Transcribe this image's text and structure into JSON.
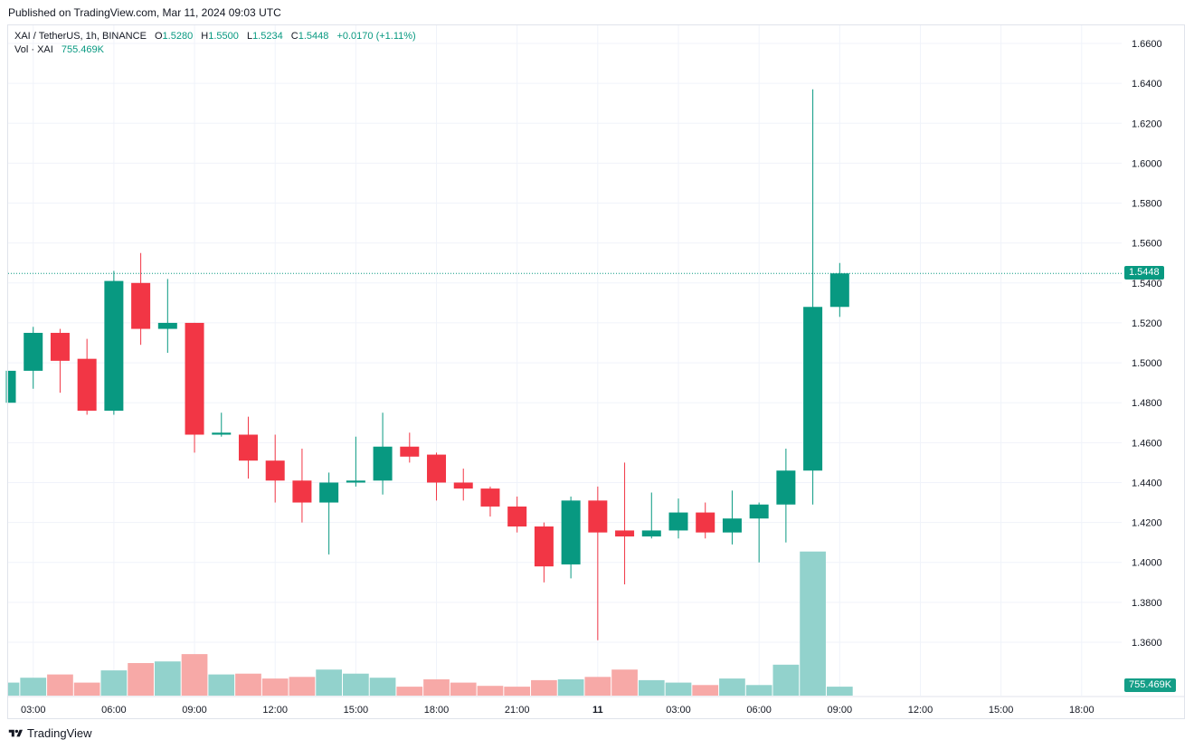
{
  "published": "Published on TradingView.com, Mar 11, 2024 09:03 UTC",
  "legend": {
    "symbol": "XAI / TetherUS, 1h, BINANCE",
    "open_label": "O",
    "open": "1.5280",
    "high_label": "H",
    "high": "1.5500",
    "low_label": "L",
    "low": "1.5234",
    "close_label": "C",
    "close": "1.5448",
    "change": "+0.0170 (+1.11%)",
    "vol_label": "Vol · XAI",
    "vol_value": "755.469K"
  },
  "price_badge": "1.5448",
  "volume_badge": "755.469K",
  "footer": {
    "brand": "TradingView"
  },
  "colors": {
    "up": "#089981",
    "down": "#f23645",
    "up_vol": "#92d2cc",
    "down_vol": "#f7a9a7",
    "grid": "#f0f3fa",
    "text": "#131722"
  },
  "chart_data": {
    "type": "candlestick",
    "symbol": "XAI / TetherUS",
    "interval": "1h",
    "exchange": "BINANCE",
    "ylim": [
      1.35,
      1.67
    ],
    "y_ticks": [
      "1.3600",
      "1.3800",
      "1.4000",
      "1.4200",
      "1.4400",
      "1.4600",
      "1.4800",
      "1.5000",
      "1.5200",
      "1.5400",
      "1.5600",
      "1.5800",
      "1.6000",
      "1.6200",
      "1.6400",
      "1.6600"
    ],
    "x_ticks": [
      {
        "label": "03:00",
        "index": 1
      },
      {
        "label": "06:00",
        "index": 4
      },
      {
        "label": "09:00",
        "index": 7
      },
      {
        "label": "12:00",
        "index": 10
      },
      {
        "label": "15:00",
        "index": 13
      },
      {
        "label": "18:00",
        "index": 16
      },
      {
        "label": "21:00",
        "index": 19
      },
      {
        "label": "11",
        "index": 22,
        "bold": true
      },
      {
        "label": "03:00",
        "index": 25
      },
      {
        "label": "06:00",
        "index": 28
      },
      {
        "label": "09:00",
        "index": 31
      },
      {
        "label": "12:00",
        "index": 34
      },
      {
        "label": "15:00",
        "index": 37
      },
      {
        "label": "18:00",
        "index": 40
      }
    ],
    "last_price": 1.5448,
    "candles": [
      {
        "o": 1.48,
        "h": 1.496,
        "l": 1.48,
        "c": 1.496,
        "v": 16
      },
      {
        "o": 1.496,
        "h": 1.518,
        "l": 1.487,
        "c": 1.515,
        "v": 22
      },
      {
        "o": 1.515,
        "h": 1.517,
        "l": 1.485,
        "c": 1.501,
        "v": 26
      },
      {
        "o": 1.502,
        "h": 1.512,
        "l": 1.474,
        "c": 1.476,
        "v": 16
      },
      {
        "o": 1.476,
        "h": 1.546,
        "l": 1.474,
        "c": 1.541,
        "v": 31
      },
      {
        "o": 1.54,
        "h": 1.555,
        "l": 1.509,
        "c": 1.517,
        "v": 40
      },
      {
        "o": 1.517,
        "h": 1.542,
        "l": 1.505,
        "c": 1.52,
        "v": 42
      },
      {
        "o": 1.52,
        "h": 1.52,
        "l": 1.455,
        "c": 1.464,
        "v": 51
      },
      {
        "o": 1.464,
        "h": 1.475,
        "l": 1.463,
        "c": 1.465,
        "v": 26
      },
      {
        "o": 1.464,
        "h": 1.473,
        "l": 1.442,
        "c": 1.451,
        "v": 27
      },
      {
        "o": 1.451,
        "h": 1.464,
        "l": 1.43,
        "c": 1.441,
        "v": 21
      },
      {
        "o": 1.441,
        "h": 1.457,
        "l": 1.42,
        "c": 1.43,
        "v": 23
      },
      {
        "o": 1.43,
        "h": 1.445,
        "l": 1.404,
        "c": 1.44,
        "v": 32
      },
      {
        "o": 1.44,
        "h": 1.463,
        "l": 1.438,
        "c": 1.441,
        "v": 27
      },
      {
        "o": 1.441,
        "h": 1.475,
        "l": 1.434,
        "c": 1.458,
        "v": 22
      },
      {
        "o": 1.458,
        "h": 1.465,
        "l": 1.45,
        "c": 1.453,
        "v": 11
      },
      {
        "o": 1.454,
        "h": 1.455,
        "l": 1.431,
        "c": 1.44,
        "v": 20
      },
      {
        "o": 1.44,
        "h": 1.447,
        "l": 1.431,
        "c": 1.437,
        "v": 16
      },
      {
        "o": 1.437,
        "h": 1.438,
        "l": 1.423,
        "c": 1.428,
        "v": 12
      },
      {
        "o": 1.428,
        "h": 1.433,
        "l": 1.415,
        "c": 1.418,
        "v": 11
      },
      {
        "o": 1.418,
        "h": 1.42,
        "l": 1.39,
        "c": 1.398,
        "v": 19
      },
      {
        "o": 1.399,
        "h": 1.433,
        "l": 1.392,
        "c": 1.431,
        "v": 20
      },
      {
        "o": 1.431,
        "h": 1.438,
        "l": 1.361,
        "c": 1.415,
        "v": 23
      },
      {
        "o": 1.416,
        "h": 1.45,
        "l": 1.389,
        "c": 1.413,
        "v": 32
      },
      {
        "o": 1.413,
        "h": 1.435,
        "l": 1.412,
        "c": 1.416,
        "v": 19
      },
      {
        "o": 1.416,
        "h": 1.432,
        "l": 1.412,
        "c": 1.425,
        "v": 16
      },
      {
        "o": 1.425,
        "h": 1.43,
        "l": 1.412,
        "c": 1.415,
        "v": 13
      },
      {
        "o": 1.415,
        "h": 1.436,
        "l": 1.409,
        "c": 1.422,
        "v": 21
      },
      {
        "o": 1.422,
        "h": 1.43,
        "l": 1.4,
        "c": 1.429,
        "v": 13
      },
      {
        "o": 1.429,
        "h": 1.457,
        "l": 1.41,
        "c": 1.446,
        "v": 38
      },
      {
        "o": 1.446,
        "h": 1.637,
        "l": 1.429,
        "c": 1.528,
        "v": 177
      },
      {
        "o": 1.528,
        "h": 1.55,
        "l": 1.523,
        "c": 1.5448,
        "v": 11
      }
    ]
  }
}
